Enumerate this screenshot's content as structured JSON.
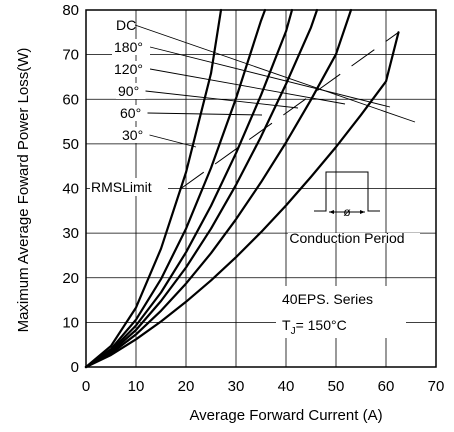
{
  "chart_data": {
    "type": "line",
    "xlabel": "Average Forward Current (A)",
    "ylabel": "Maximum Average Foward Power Loss(W)",
    "xlim": [
      0,
      70
    ],
    "ylim": [
      0,
      80
    ],
    "xticks": [
      "0",
      "10",
      "20",
      "30",
      "40",
      "50",
      "60",
      "70"
    ],
    "yticks": [
      "0",
      "10",
      "20",
      "30",
      "40",
      "50",
      "60",
      "70",
      "80"
    ],
    "grid": true,
    "series": [
      {
        "name": "30°",
        "x": [
          0,
          5,
          10,
          15,
          20,
          25,
          27
        ],
        "y": [
          0,
          4.7,
          13.3,
          26.5,
          43.6,
          65.8,
          80
        ]
      },
      {
        "name": "60°",
        "x": [
          0,
          5,
          10,
          15,
          20,
          25,
          30,
          35,
          35.8
        ],
        "y": [
          0,
          4.0,
          10.6,
          19.7,
          31.0,
          44.6,
          60.2,
          77.6,
          80
        ]
      },
      {
        "name": "90°",
        "x": [
          0,
          5,
          10,
          15,
          20,
          25,
          30,
          35,
          40,
          41.2
        ],
        "y": [
          0,
          3.6,
          9.3,
          16.7,
          25.7,
          36.1,
          47.9,
          60.9,
          75.2,
          80
        ]
      },
      {
        "name": "120°",
        "x": [
          0,
          5,
          10,
          15,
          20,
          25,
          30,
          35,
          40,
          45,
          46.2
        ],
        "y": [
          0,
          3.3,
          8.3,
          14.8,
          22.3,
          31.0,
          40.8,
          51.6,
          63.4,
          76.1,
          80
        ]
      },
      {
        "name": "180°",
        "x": [
          0,
          5,
          10,
          15,
          20,
          25,
          30,
          35,
          40,
          45,
          50,
          53.0
        ],
        "y": [
          0,
          3.0,
          7.3,
          12.6,
          18.7,
          25.5,
          33.1,
          41.4,
          50.3,
          59.9,
          70.1,
          80
        ]
      },
      {
        "name": "DC",
        "x": [
          0,
          5,
          10,
          15,
          20,
          25,
          30,
          35,
          40,
          45,
          50,
          55,
          60,
          62.5
        ],
        "y": [
          0,
          2.7,
          6.2,
          10.2,
          14.6,
          19.4,
          24.6,
          30.2,
          36.2,
          42.6,
          49.3,
          56.5,
          64.0,
          75
        ]
      }
    ],
    "rms_limit": {
      "x": [
        19,
        62.5
      ],
      "y": [
        40,
        75
      ]
    },
    "annotations": {
      "rms_label": "RMSLimit",
      "conduction_label": "Conduction Period",
      "phi_symbol": "ø",
      "series_title": "40EPS. Series",
      "tj_prefix": "T",
      "tj_sub": "J",
      "tj_suffix": "= 150°C"
    }
  }
}
